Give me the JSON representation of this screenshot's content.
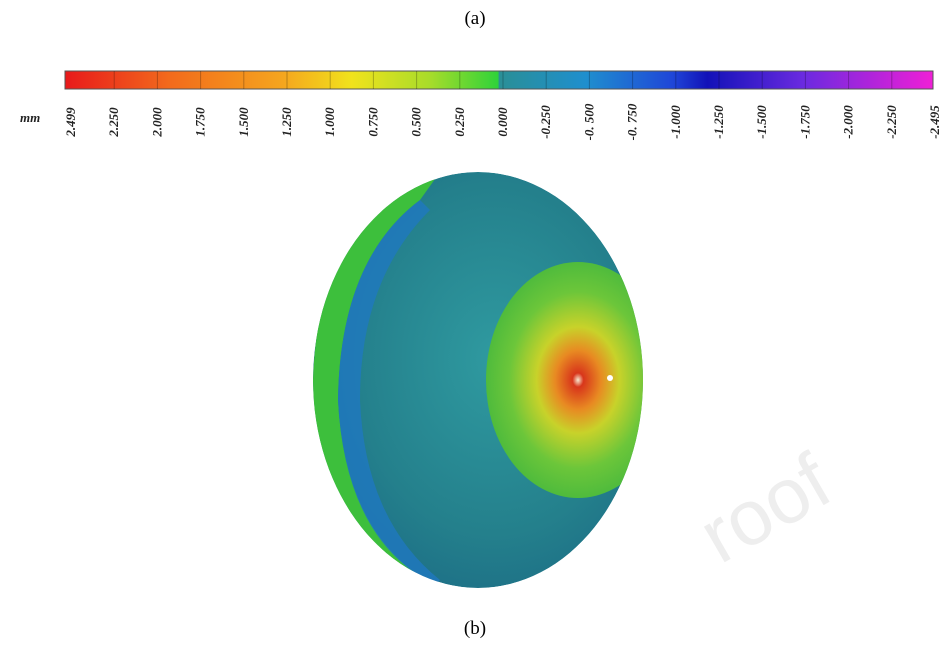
{
  "caption_top": "(a)",
  "colorbar": {
    "unit": "mm",
    "labels": [
      "2.499",
      "2.250",
      "2.000",
      "1.750",
      "1.500",
      "1.250",
      "1.000",
      "0.750",
      "0.500",
      "0.250",
      "0.000",
      "-0.250",
      "-0. 500",
      "-0. 750",
      "-1.000",
      "-1.250",
      "-1.500",
      "-1.750",
      "-2.000",
      "-2.250",
      "-2.495"
    ]
  },
  "caption_bottom": "(b)",
  "watermark": "roof"
}
